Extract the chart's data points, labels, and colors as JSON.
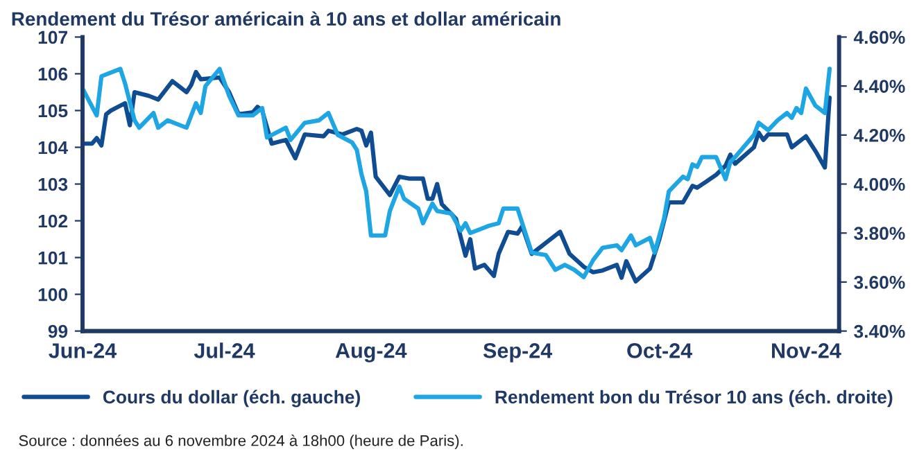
{
  "chart_data": {
    "type": "line",
    "title": "Rendement du Trésor américain à 10 ans et dollar américain",
    "annotations": [
      "Source : données au 6 novembre 2024 à 18h00 (heure de Paris)."
    ],
    "xlim": [
      "2024-06-01",
      "2024-11-08"
    ],
    "xticks": [
      {
        "value": "2024-06-01",
        "label": "Jun-24"
      },
      {
        "value": "2024-07-01",
        "label": "Jul-24"
      },
      {
        "value": "2024-08-01",
        "label": "Aug-24"
      },
      {
        "value": "2024-09-01",
        "label": "Sep-24"
      },
      {
        "value": "2024-10-01",
        "label": "Oct-24"
      },
      {
        "value": "2024-11-01",
        "label": "Nov-24"
      }
    ],
    "ylim": [
      99,
      107
    ],
    "yticks": [
      99,
      100,
      101,
      102,
      103,
      104,
      105,
      106,
      107
    ],
    "y2lim": [
      3.4,
      4.6
    ],
    "y2ticks": [
      {
        "value": 3.4,
        "label": "3.40%"
      },
      {
        "value": 3.6,
        "label": "3.60%"
      },
      {
        "value": 3.8,
        "label": "3.80%"
      },
      {
        "value": 4.0,
        "label": "4.00%"
      },
      {
        "value": 4.2,
        "label": "4.20%"
      },
      {
        "value": 4.4,
        "label": "4.40%"
      },
      {
        "value": 4.6,
        "label": "4.60%"
      }
    ],
    "grid": false,
    "legend": "bottom",
    "marker": "none",
    "line_style": "solid",
    "series": [
      {
        "name": "Cours du dollar (éch. gauche)",
        "color": "#0f4c92",
        "x": [
          "2024-06-01",
          "2024-06-03",
          "2024-06-04",
          "2024-06-05",
          "2024-06-06",
          "2024-06-07",
          "2024-06-10",
          "2024-06-11",
          "2024-06-12",
          "2024-06-15",
          "2024-06-17",
          "2024-06-20",
          "2024-06-23",
          "2024-06-24",
          "2024-06-25",
          "2024-06-26",
          "2024-06-30",
          "2024-07-02",
          "2024-07-04",
          "2024-07-07",
          "2024-07-08",
          "2024-07-09",
          "2024-07-11",
          "2024-07-14",
          "2024-07-16",
          "2024-07-18",
          "2024-07-22",
          "2024-07-23",
          "2024-07-26",
          "2024-07-29",
          "2024-07-30",
          "2024-07-31",
          "2024-08-01",
          "2024-08-02",
          "2024-08-05",
          "2024-08-07",
          "2024-08-09",
          "2024-08-12",
          "2024-08-13",
          "2024-08-14",
          "2024-08-15",
          "2024-08-16",
          "2024-08-19",
          "2024-08-21",
          "2024-08-22",
          "2024-08-23",
          "2024-08-25",
          "2024-08-27",
          "2024-08-28",
          "2024-08-30",
          "2024-09-01",
          "2024-09-02",
          "2024-09-04",
          "2024-09-10",
          "2024-09-12",
          "2024-09-15",
          "2024-09-17",
          "2024-09-19",
          "2024-09-22",
          "2024-09-23",
          "2024-09-24",
          "2024-09-26",
          "2024-09-29",
          "2024-10-01",
          "2024-10-03",
          "2024-10-06",
          "2024-10-08",
          "2024-10-09",
          "2024-10-13",
          "2024-10-15",
          "2024-10-16",
          "2024-10-17",
          "2024-10-21",
          "2024-10-22",
          "2024-10-23",
          "2024-10-24",
          "2024-10-28",
          "2024-10-29",
          "2024-11-01",
          "2024-11-03",
          "2024-11-05",
          "2024-11-06"
        ],
        "values": [
          104.1,
          104.1,
          104.25,
          104.05,
          104.9,
          105.0,
          105.2,
          104.6,
          105.5,
          105.4,
          105.3,
          105.8,
          105.5,
          105.7,
          106.05,
          105.85,
          105.9,
          105.5,
          104.9,
          104.95,
          105.1,
          105.0,
          104.1,
          104.2,
          103.7,
          104.35,
          104.3,
          104.45,
          104.35,
          104.5,
          104.45,
          104.05,
          104.4,
          103.2,
          102.7,
          103.2,
          103.15,
          103.15,
          102.6,
          102.6,
          103.0,
          102.45,
          102.05,
          101.05,
          101.5,
          100.7,
          100.8,
          100.5,
          101.1,
          101.7,
          101.65,
          101.85,
          101.1,
          101.7,
          101.1,
          100.75,
          100.6,
          100.65,
          100.8,
          100.45,
          100.9,
          100.35,
          100.7,
          101.5,
          102.5,
          102.5,
          102.95,
          102.9,
          103.25,
          103.5,
          103.8,
          103.55,
          104.0,
          104.4,
          104.2,
          104.35,
          104.35,
          104.0,
          104.3,
          103.9,
          103.45,
          105.35
        ]
      },
      {
        "name": "Rendement bon du Trésor 10 ans (éch. droite)",
        "color": "#1ea5e3",
        "axis": "y2",
        "x": [
          "2024-06-01",
          "2024-06-04",
          "2024-06-05",
          "2024-06-09",
          "2024-06-10",
          "2024-06-12",
          "2024-06-13",
          "2024-06-16",
          "2024-06-17",
          "2024-06-19",
          "2024-06-23",
          "2024-06-25",
          "2024-06-26",
          "2024-06-27",
          "2024-06-30",
          "2024-07-02",
          "2024-07-04",
          "2024-07-07",
          "2024-07-09",
          "2024-07-10",
          "2024-07-14",
          "2024-07-15",
          "2024-07-18",
          "2024-07-21",
          "2024-07-23",
          "2024-07-25",
          "2024-07-28",
          "2024-07-29",
          "2024-07-30",
          "2024-07-31",
          "2024-08-01",
          "2024-08-04",
          "2024-08-05",
          "2024-08-07",
          "2024-08-08",
          "2024-08-11",
          "2024-08-12",
          "2024-08-14",
          "2024-08-15",
          "2024-08-18",
          "2024-08-20",
          "2024-08-21",
          "2024-08-22",
          "2024-08-26",
          "2024-08-28",
          "2024-08-29",
          "2024-09-01",
          "2024-09-02",
          "2024-09-04",
          "2024-09-07",
          "2024-09-09",
          "2024-09-11",
          "2024-09-13",
          "2024-09-15",
          "2024-09-17",
          "2024-09-19",
          "2024-09-22",
          "2024-09-23",
          "2024-09-25",
          "2024-09-26",
          "2024-09-29",
          "2024-09-30",
          "2024-10-02",
          "2024-10-03",
          "2024-10-06",
          "2024-10-07",
          "2024-10-08",
          "2024-10-09",
          "2024-10-10",
          "2024-10-13",
          "2024-10-15",
          "2024-10-16",
          "2024-10-17",
          "2024-10-21",
          "2024-10-22",
          "2024-10-24",
          "2024-10-26",
          "2024-10-28",
          "2024-10-29",
          "2024-10-30",
          "2024-10-31",
          "2024-11-01",
          "2024-11-03",
          "2024-11-05",
          "2024-11-06"
        ],
        "values": [
          4.39,
          4.28,
          4.44,
          4.47,
          4.41,
          4.26,
          4.23,
          4.29,
          4.23,
          4.26,
          4.23,
          4.33,
          4.29,
          4.4,
          4.47,
          4.36,
          4.28,
          4.28,
          4.31,
          4.19,
          4.23,
          4.18,
          4.25,
          4.26,
          4.29,
          4.2,
          4.17,
          4.14,
          4.04,
          3.97,
          3.79,
          3.79,
          3.89,
          3.99,
          3.94,
          3.9,
          3.84,
          3.92,
          3.89,
          3.88,
          3.81,
          3.84,
          3.8,
          3.83,
          3.84,
          3.9,
          3.9,
          3.84,
          3.72,
          3.71,
          3.65,
          3.67,
          3.65,
          3.62,
          3.69,
          3.74,
          3.75,
          3.73,
          3.79,
          3.75,
          3.78,
          3.72,
          3.86,
          3.97,
          4.03,
          4.02,
          4.08,
          4.07,
          4.11,
          4.11,
          4.02,
          4.09,
          4.11,
          4.2,
          4.25,
          4.22,
          4.26,
          4.29,
          4.27,
          4.31,
          4.29,
          4.39,
          4.32,
          4.29,
          4.47
        ]
      }
    ]
  }
}
